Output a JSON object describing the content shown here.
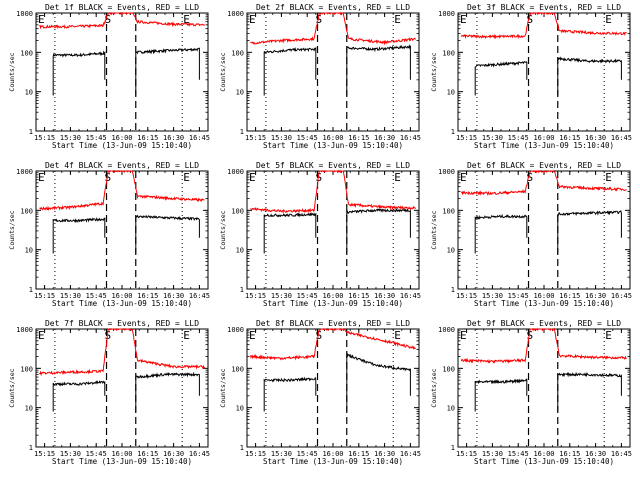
{
  "x_tick_labels": [
    "15:15",
    "15:30",
    "15:45",
    "16:00",
    "16:15",
    "16:30",
    "16:45"
  ],
  "y_tick_labels": [
    "1",
    "10",
    "100",
    "1000"
  ],
  "xlabel": "Start Time (13-Jun-09 15:10:40)",
  "ylabel": "Counts/sec",
  "markers": {
    "start": "E",
    "middle": "S",
    "end": "E"
  },
  "colors": {
    "events": "#000000",
    "lld": "#ff0000"
  },
  "chart_data": [
    {
      "type": "line",
      "title": "Det 1f BLACK = Events, RED = LLD",
      "ylim": [
        1,
        1000
      ],
      "xlim": [
        "15:10",
        "16:50"
      ],
      "y_scale": "log",
      "grid": false,
      "x_markers": {
        "dotted": [
          "15:21",
          "16:35"
        ],
        "dashed": [
          "15:51",
          "16:08"
        ]
      },
      "series": [
        {
          "name": "Events",
          "color": "#000000",
          "x": [
            "15:20",
            "15:35",
            "15:50",
            "16:08",
            "16:25",
            "16:45"
          ],
          "y": [
            85,
            85,
            95,
            100,
            110,
            120
          ]
        },
        {
          "name": "LLD",
          "color": "#ff0000",
          "x": [
            "15:12",
            "15:30",
            "15:49",
            "15:52",
            "16:06",
            "16:09",
            "16:30",
            "16:48"
          ],
          "y": [
            450,
            450,
            480,
            1000,
            1000,
            600,
            520,
            500
          ]
        }
      ]
    },
    {
      "type": "line",
      "title": "Det 2f BLACK = Events, RED = LLD",
      "ylim": [
        1,
        1000
      ],
      "xlim": [
        "15:10",
        "16:50"
      ],
      "y_scale": "log",
      "grid": false,
      "x_markers": {
        "dotted": [
          "15:21",
          "16:35"
        ],
        "dashed": [
          "15:51",
          "16:08"
        ]
      },
      "series": [
        {
          "name": "Events",
          "color": "#000000",
          "x": [
            "15:20",
            "15:35",
            "15:50",
            "16:08",
            "16:25",
            "16:45"
          ],
          "y": [
            100,
            115,
            120,
            130,
            120,
            140
          ]
        },
        {
          "name": "LLD",
          "color": "#ff0000",
          "x": [
            "15:12",
            "15:30",
            "15:49",
            "15:52",
            "16:06",
            "16:09",
            "16:30",
            "16:48"
          ],
          "y": [
            170,
            200,
            220,
            1000,
            1000,
            220,
            180,
            220
          ]
        }
      ]
    },
    {
      "type": "line",
      "title": "Det 3f BLACK = Events, RED = LLD",
      "ylim": [
        1,
        1000
      ],
      "xlim": [
        "15:10",
        "16:50"
      ],
      "y_scale": "log",
      "grid": false,
      "x_markers": {
        "dotted": [
          "15:21",
          "16:35"
        ],
        "dashed": [
          "15:51",
          "16:08"
        ]
      },
      "series": [
        {
          "name": "Events",
          "color": "#000000",
          "x": [
            "15:20",
            "15:35",
            "15:50",
            "16:08",
            "16:25",
            "16:45"
          ],
          "y": [
            45,
            50,
            55,
            70,
            60,
            60
          ]
        },
        {
          "name": "LLD",
          "color": "#ff0000",
          "x": [
            "15:12",
            "15:30",
            "15:49",
            "15:52",
            "16:06",
            "16:09",
            "16:30",
            "16:48"
          ],
          "y": [
            260,
            250,
            260,
            1000,
            1000,
            350,
            310,
            300
          ]
        }
      ]
    },
    {
      "type": "line",
      "title": "Det 4f BLACK = Events, RED = LLD",
      "ylim": [
        1,
        1000
      ],
      "xlim": [
        "15:10",
        "16:50"
      ],
      "y_scale": "log",
      "grid": false,
      "x_markers": {
        "dotted": [
          "15:21",
          "16:35"
        ],
        "dashed": [
          "15:51",
          "16:08"
        ]
      },
      "series": [
        {
          "name": "Events",
          "color": "#000000",
          "x": [
            "15:20",
            "15:35",
            "15:50",
            "16:08",
            "16:25",
            "16:45"
          ],
          "y": [
            55,
            55,
            60,
            70,
            65,
            60
          ]
        },
        {
          "name": "LLD",
          "color": "#ff0000",
          "x": [
            "15:12",
            "15:30",
            "15:49",
            "15:52",
            "16:06",
            "16:09",
            "16:30",
            "16:48"
          ],
          "y": [
            110,
            120,
            150,
            1000,
            1000,
            230,
            200,
            180
          ]
        }
      ]
    },
    {
      "type": "line",
      "title": "Det 5f BLACK = Events, RED = LLD",
      "ylim": [
        1,
        1000
      ],
      "xlim": [
        "15:10",
        "16:50"
      ],
      "y_scale": "log",
      "grid": false,
      "x_markers": {
        "dotted": [
          "15:21",
          "16:35"
        ],
        "dashed": [
          "15:51",
          "16:08"
        ]
      },
      "series": [
        {
          "name": "Events",
          "color": "#000000",
          "x": [
            "15:20",
            "15:35",
            "15:50",
            "16:08",
            "16:25",
            "16:45"
          ],
          "y": [
            75,
            75,
            80,
            90,
            100,
            100
          ]
        },
        {
          "name": "LLD",
          "color": "#ff0000",
          "x": [
            "15:12",
            "15:30",
            "15:49",
            "15:52",
            "16:06",
            "16:09",
            "16:30",
            "16:48"
          ],
          "y": [
            110,
            95,
            100,
            1000,
            1000,
            140,
            120,
            115
          ]
        }
      ]
    },
    {
      "type": "line",
      "title": "Det 6f BLACK = Events, RED = LLD",
      "ylim": [
        1,
        1000
      ],
      "xlim": [
        "15:10",
        "16:50"
      ],
      "y_scale": "log",
      "grid": false,
      "x_markers": {
        "dotted": [
          "15:21",
          "16:35"
        ],
        "dashed": [
          "15:51",
          "16:08"
        ]
      },
      "series": [
        {
          "name": "Events",
          "color": "#000000",
          "x": [
            "15:20",
            "15:35",
            "15:50",
            "16:08",
            "16:25",
            "16:45"
          ],
          "y": [
            65,
            70,
            70,
            80,
            85,
            90
          ]
        },
        {
          "name": "LLD",
          "color": "#ff0000",
          "x": [
            "15:12",
            "15:30",
            "15:49",
            "15:52",
            "16:06",
            "16:09",
            "16:30",
            "16:48"
          ],
          "y": [
            280,
            270,
            300,
            1000,
            1000,
            400,
            360,
            340
          ]
        }
      ]
    },
    {
      "type": "line",
      "title": "Det 7f BLACK = Events, RED = LLD",
      "ylim": [
        1,
        1000
      ],
      "xlim": [
        "15:10",
        "16:50"
      ],
      "y_scale": "log",
      "grid": false,
      "x_markers": {
        "dotted": [
          "15:21",
          "16:35"
        ],
        "dashed": [
          "15:51",
          "16:08"
        ]
      },
      "series": [
        {
          "name": "Events",
          "color": "#000000",
          "x": [
            "15:20",
            "15:35",
            "15:50",
            "16:08",
            "16:25",
            "16:45"
          ],
          "y": [
            40,
            40,
            45,
            60,
            70,
            70
          ]
        },
        {
          "name": "LLD",
          "color": "#ff0000",
          "x": [
            "15:12",
            "15:30",
            "15:49",
            "15:52",
            "16:06",
            "16:09",
            "16:30",
            "16:48"
          ],
          "y": [
            75,
            80,
            85,
            1000,
            1000,
            160,
            110,
            110
          ]
        }
      ]
    },
    {
      "type": "line",
      "title": "Det 8f BLACK = Events, RED = LLD",
      "ylim": [
        1,
        1000
      ],
      "xlim": [
        "15:10",
        "16:50"
      ],
      "y_scale": "log",
      "grid": false,
      "x_markers": {
        "dotted": [
          "15:21",
          "16:35"
        ],
        "dashed": [
          "15:51",
          "16:08"
        ]
      },
      "series": [
        {
          "name": "Events",
          "color": "#000000",
          "x": [
            "15:20",
            "15:35",
            "15:50",
            "16:08",
            "16:25",
            "16:45"
          ],
          "y": [
            50,
            50,
            55,
            220,
            120,
            90
          ]
        },
        {
          "name": "LLD",
          "color": "#ff0000",
          "x": [
            "15:12",
            "15:30",
            "15:49",
            "15:52",
            "16:06",
            "16:09",
            "16:30",
            "16:48"
          ],
          "y": [
            200,
            180,
            200,
            1000,
            1000,
            800,
            500,
            320
          ]
        }
      ]
    },
    {
      "type": "line",
      "title": "Det 9f BLACK = Events, RED = LLD",
      "ylim": [
        1,
        1000
      ],
      "xlim": [
        "15:10",
        "16:50"
      ],
      "y_scale": "log",
      "grid": false,
      "x_markers": {
        "dotted": [
          "15:21",
          "16:35"
        ],
        "dashed": [
          "15:51",
          "16:08"
        ]
      },
      "series": [
        {
          "name": "Events",
          "color": "#000000",
          "x": [
            "15:20",
            "15:35",
            "15:50",
            "16:08",
            "16:25",
            "16:45"
          ],
          "y": [
            45,
            45,
            50,
            70,
            70,
            65
          ]
        },
        {
          "name": "LLD",
          "color": "#ff0000",
          "x": [
            "15:12",
            "15:30",
            "15:49",
            "15:52",
            "16:06",
            "16:09",
            "16:30",
            "16:48"
          ],
          "y": [
            160,
            150,
            160,
            1000,
            1000,
            210,
            190,
            185
          ]
        }
      ]
    }
  ]
}
